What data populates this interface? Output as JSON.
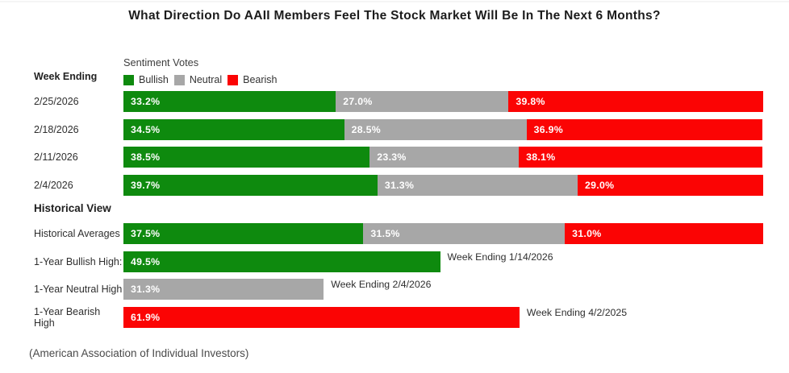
{
  "title": "What Direction Do AAII Members Feel The Stock Market Will Be In The Next 6 Months?",
  "caption": "(American Association of Individual Investors)",
  "colors": {
    "bullish": "#0e8a0e",
    "neutral": "#a7a7a7",
    "bearish": "#fb0404"
  },
  "left_column": {
    "week_ending_label": "Week Ending",
    "historical_view_label": "Historical View"
  },
  "legend": {
    "title": "Sentiment Votes",
    "items": [
      {
        "label": "Bullish",
        "series": "bullish"
      },
      {
        "label": "Neutral",
        "series": "neutral"
      },
      {
        "label": "Bearish",
        "series": "bearish"
      }
    ]
  },
  "chart_data": {
    "type": "bar",
    "orientation": "horizontal_stacked",
    "unit": "%",
    "scale_max": 100,
    "series_order": [
      "bullish",
      "neutral",
      "bearish"
    ],
    "weekly_rows": [
      {
        "label": "2/25/2026",
        "bullish": 33.2,
        "neutral": 27.0,
        "bearish": 39.8
      },
      {
        "label": "2/18/2026",
        "bullish": 34.5,
        "neutral": 28.5,
        "bearish": 36.9
      },
      {
        "label": "2/11/2026",
        "bullish": 38.5,
        "neutral": 23.3,
        "bearish": 38.1
      },
      {
        "label": "2/4/2026",
        "bullish": 39.7,
        "neutral": 31.3,
        "bearish": 29.0
      }
    ],
    "historical_rows": [
      {
        "label": "Historical Averages",
        "bullish": 37.5,
        "neutral": 31.5,
        "bearish": 31.0
      }
    ],
    "extreme_rows": [
      {
        "label": "1-Year Bullish High:",
        "series": "bullish",
        "value": 49.5,
        "annotation": "Week Ending 1/14/2026"
      },
      {
        "label": "1-Year Neutral High",
        "series": "neutral",
        "value": 31.3,
        "annotation": "Week Ending 2/4/2026"
      },
      {
        "label": "1-Year Bearish High",
        "series": "bearish",
        "value": 61.9,
        "annotation": "Week Ending 4/2/2025"
      }
    ]
  }
}
